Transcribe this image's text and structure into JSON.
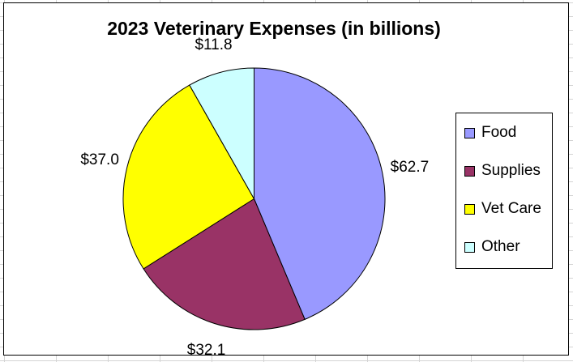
{
  "chart_data": {
    "type": "pie",
    "title": "2023 Veterinary Expenses (in billions)",
    "categories": [
      "Food",
      "Supplies",
      "Vet Care",
      "Other"
    ],
    "values": [
      62.7,
      32.1,
      37.0,
      11.8
    ],
    "data_labels": [
      "$62.7",
      "$32.1",
      "$37.0",
      "$11.8"
    ],
    "colors": [
      "#9999ff",
      "#993366",
      "#ffff00",
      "#ccffff"
    ],
    "start_angle": "12 o'clock",
    "direction": "clockwise",
    "legend": {
      "position": "right",
      "entries": [
        "Food",
        "Supplies",
        "Vet Care",
        "Other"
      ]
    }
  }
}
